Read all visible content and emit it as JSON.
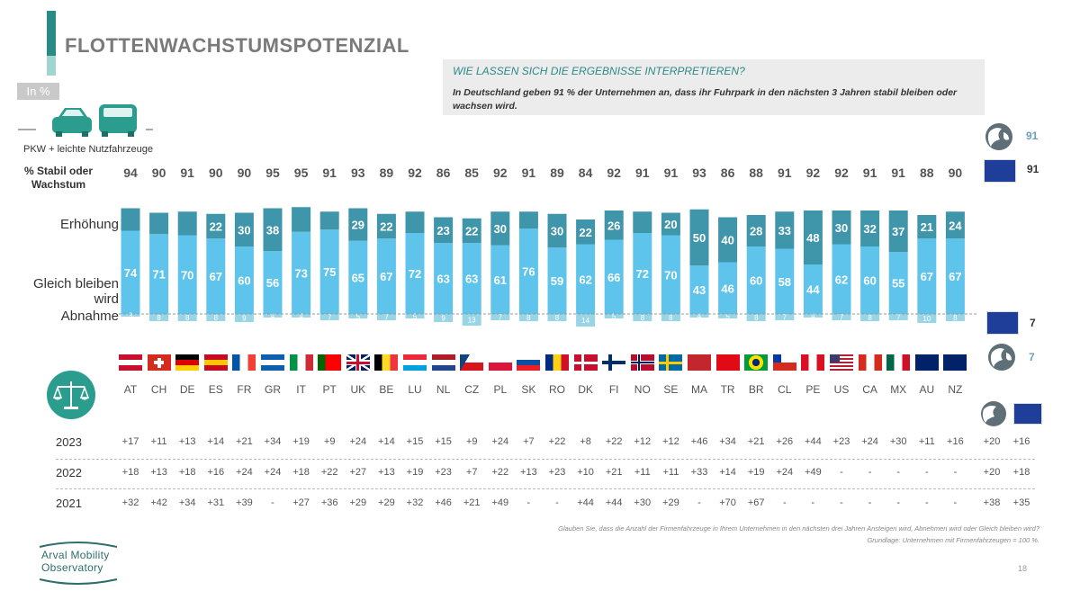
{
  "header": {
    "title": "FLOTTENWACHSTUMSPOTENZIAL",
    "unit_badge": "In %",
    "vehicles_caption": "PKW + leichte Nutzfahrzeuge",
    "stable_label_line1": "% Stabil oder",
    "stable_label_line2": "Wachstum"
  },
  "info_box": {
    "heading": "WIE LASSEN SICH DIE ERGEBNISSE INTERPRETIEREN?",
    "text": "In Deutschland geben 91 % der Unternehmen an, dass ihr Fuhrpark in den nächsten 3 Jahren stabil bleiben oder wachsen wird."
  },
  "row_labels": {
    "increase": "Erhöhung",
    "same_line1": "Gleich bleiben",
    "same_line2": "wird",
    "decrease": "Abnahme"
  },
  "chart_data": {
    "type": "bar",
    "stacked": true,
    "categories": [
      "AT",
      "CH",
      "DE",
      "ES",
      "FR",
      "GR",
      "IT",
      "PT",
      "UK",
      "BE",
      "LU",
      "NL",
      "CZ",
      "PL",
      "SK",
      "RO",
      "DK",
      "FI",
      "NO",
      "SE",
      "MA",
      "TR",
      "BR",
      "CL",
      "PE",
      "US",
      "CA",
      "MX",
      "AU",
      "NZ"
    ],
    "stable_or_growth": [
      94,
      90,
      91,
      90,
      90,
      95,
      95,
      91,
      93,
      89,
      92,
      86,
      85,
      92,
      91,
      89,
      84,
      92,
      91,
      91,
      93,
      86,
      88,
      91,
      92,
      92,
      91,
      91,
      88,
      90
    ],
    "series": [
      {
        "name": "Erhöhung",
        "color": "#3f95aa",
        "values": [
          20,
          19,
          21,
          22,
          30,
          38,
          22,
          16,
          29,
          22,
          19,
          23,
          22,
          30,
          15,
          30,
          22,
          26,
          19,
          20,
          50,
          40,
          28,
          33,
          48,
          30,
          32,
          37,
          21,
          24
        ],
        "labeled": [
          false,
          false,
          false,
          true,
          true,
          true,
          false,
          false,
          true,
          true,
          false,
          true,
          true,
          true,
          false,
          true,
          true,
          true,
          false,
          true,
          true,
          true,
          true,
          true,
          true,
          true,
          true,
          true,
          true,
          true
        ]
      },
      {
        "name": "Gleich bleiben wird",
        "color": "#5ec4ec",
        "values": [
          74,
          71,
          70,
          67,
          60,
          56,
          73,
          75,
          65,
          67,
          72,
          63,
          63,
          61,
          76,
          59,
          62,
          66,
          72,
          70,
          43,
          46,
          60,
          58,
          44,
          62,
          60,
          55,
          67,
          67
        ]
      },
      {
        "name": "Abnahme",
        "color": "#98d5e6",
        "values": [
          3,
          8,
          8,
          8,
          9,
          4,
          4,
          7,
          5,
          7,
          5,
          9,
          13,
          7,
          8,
          8,
          14,
          5,
          8,
          8,
          4,
          5,
          8,
          7,
          4,
          7,
          8,
          7,
          10,
          8
        ]
      }
    ],
    "ylim": [
      0,
      100
    ]
  },
  "flags": [
    "AT",
    "CH",
    "DE",
    "ES",
    "FR",
    "GR",
    "IT",
    "PT",
    "UK",
    "BE",
    "LU",
    "NL",
    "CZ",
    "PL",
    "SK",
    "RO",
    "DK",
    "FI",
    "NO",
    "SE",
    "MA",
    "TR",
    "BR",
    "CL",
    "PE",
    "US",
    "CA",
    "MX",
    "AU",
    "NZ"
  ],
  "side_values": {
    "world_stable": "91",
    "eu_stable": "91",
    "eu_decrease": "7",
    "world_decrease": "7"
  },
  "year_rows": [
    {
      "year": "2023",
      "values": [
        "+17",
        "+11",
        "+13",
        "+14",
        "+21",
        "+34",
        "+19",
        "+9",
        "+24",
        "+14",
        "+15",
        "+15",
        "+9",
        "+24",
        "+7",
        "+22",
        "+8",
        "+22",
        "+12",
        "+12",
        "+46",
        "+34",
        "+21",
        "+26",
        "+44",
        "+23",
        "+24",
        "+30",
        "+11",
        "+16"
      ],
      "world": "+20",
      "eu": "+16"
    },
    {
      "year": "2022",
      "values": [
        "+18",
        "+13",
        "+18",
        "+16",
        "+24",
        "+24",
        "+18",
        "+22",
        "+27",
        "+13",
        "+19",
        "+23",
        "+7",
        "+22",
        "+13",
        "+23",
        "+10",
        "+21",
        "+11",
        "+11",
        "+33",
        "+14",
        "+19",
        "+24",
        "+49",
        "-",
        "-",
        "-",
        "-",
        "-"
      ],
      "world": "+20",
      "eu": "+18"
    },
    {
      "year": "2021",
      "values": [
        "+32",
        "+42",
        "+34",
        "+31",
        "+39",
        "-",
        "+27",
        "+36",
        "+29",
        "+29",
        "+32",
        "+46",
        "+21",
        "+49",
        "-",
        "-",
        "+44",
        "+44",
        "+30",
        "+29",
        "-",
        "+70",
        "+67",
        "-",
        "-",
        "-",
        "-",
        "-",
        "-",
        "-"
      ],
      "world": "+38",
      "eu": "+35"
    }
  ],
  "footnote": {
    "line1": "Glauben Sie, dass die Anzahl der Firmenfahrzeuge in Ihrem Unternehmen in den nächsten drei Jahren Ansteigen wird, Abnehmen wird oder Gleich bleiben wird?",
    "line2": "Grundlage: Unternehmen mit Firmenfahrzeugen = 100 %."
  },
  "logo": {
    "line1": "Arval Mobility",
    "line2": "Observatory"
  },
  "page_number": "18",
  "colors": {
    "accent": "#2a8a86",
    "increase": "#3f95aa",
    "same": "#5ec4ec",
    "decrease": "#98d5e6"
  },
  "icons": [
    "car-icon",
    "van-icon",
    "globe-icon",
    "eu-flag-icon",
    "scale-icon"
  ]
}
